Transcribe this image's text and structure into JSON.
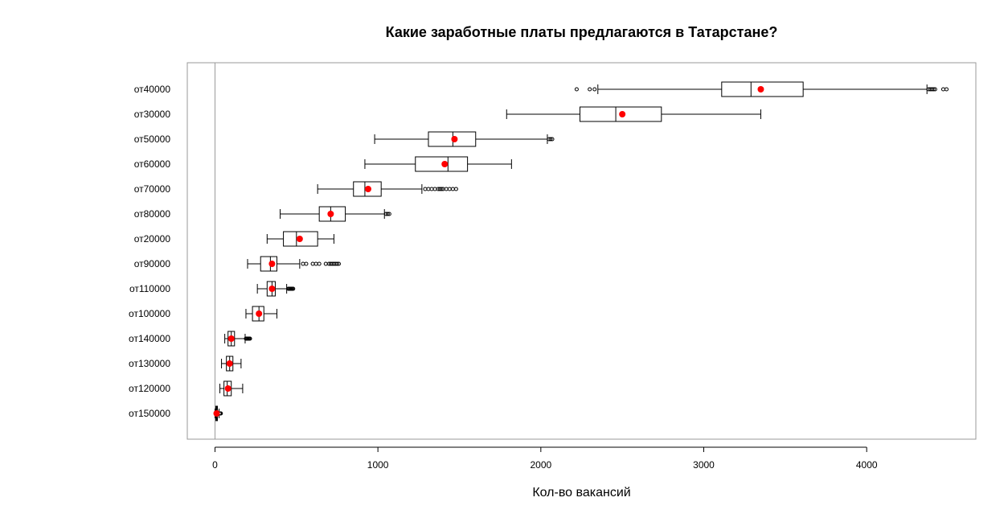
{
  "chart_data": {
    "type": "boxplot",
    "title": "Какие заработные платы предлагаются в Татарстане?",
    "xlabel": "Кол-во вакансий",
    "ylabel": "",
    "xlim": [
      -170,
      4670
    ],
    "x_ticks": [
      0,
      1000,
      2000,
      3000,
      4000
    ],
    "reference_line_x": 0,
    "mean_color": "#ff0000",
    "orientation": "horizontal",
    "categories": [
      "от40000",
      "от30000",
      "от50000",
      "от60000",
      "от70000",
      "от80000",
      "от20000",
      "от90000",
      "от110000",
      "от100000",
      "от140000",
      "от130000",
      "от120000",
      "от150000"
    ],
    "boxes": [
      {
        "label": "от40000",
        "whisker_low": 2350,
        "q1": 3110,
        "median": 3290,
        "q3": 3610,
        "whisker_high": 4370,
        "mean": 3350,
        "outliers": [
          2220,
          2300,
          2330,
          4380,
          4390,
          4400,
          4410,
          4420,
          4470,
          4490
        ]
      },
      {
        "label": "от30000",
        "whisker_low": 1790,
        "q1": 2240,
        "median": 2460,
        "q3": 2740,
        "whisker_high": 3350,
        "mean": 2500,
        "outliers": []
      },
      {
        "label": "от50000",
        "whisker_low": 980,
        "q1": 1310,
        "median": 1460,
        "q3": 1600,
        "whisker_high": 2040,
        "mean": 1470,
        "outliers": [
          2050,
          2060,
          2070
        ]
      },
      {
        "label": "от60000",
        "whisker_low": 920,
        "q1": 1230,
        "median": 1430,
        "q3": 1550,
        "whisker_high": 1820,
        "mean": 1410,
        "outliers": []
      },
      {
        "label": "от70000",
        "whisker_low": 630,
        "q1": 850,
        "median": 920,
        "q3": 1020,
        "whisker_high": 1270,
        "mean": 940,
        "outliers": [
          1290,
          1310,
          1330,
          1350,
          1370,
          1380,
          1390,
          1400,
          1420,
          1440,
          1460,
          1480
        ]
      },
      {
        "label": "от80000",
        "whisker_low": 400,
        "q1": 640,
        "median": 710,
        "q3": 800,
        "whisker_high": 1040,
        "mean": 710,
        "outliers": [
          1050,
          1060,
          1070
        ]
      },
      {
        "label": "от20000",
        "whisker_low": 320,
        "q1": 420,
        "median": 500,
        "q3": 630,
        "whisker_high": 730,
        "mean": 520,
        "outliers": []
      },
      {
        "label": "от90000",
        "whisker_low": 200,
        "q1": 280,
        "median": 340,
        "q3": 380,
        "whisker_high": 520,
        "mean": 350,
        "outliers": [
          540,
          560,
          600,
          620,
          640,
          680,
          700,
          710,
          720,
          730,
          740,
          750,
          760
        ]
      },
      {
        "label": "от110000",
        "whisker_low": 260,
        "q1": 320,
        "median": 350,
        "q3": 370,
        "whisker_high": 440,
        "mean": 350,
        "outliers": [
          450,
          455,
          460,
          465,
          470,
          475,
          480
        ]
      },
      {
        "label": "от100000",
        "whisker_low": 190,
        "q1": 230,
        "median": 270,
        "q3": 300,
        "whisker_high": 380,
        "mean": 270,
        "outliers": []
      },
      {
        "label": "от140000",
        "whisker_low": 60,
        "q1": 80,
        "median": 100,
        "q3": 120,
        "whisker_high": 185,
        "mean": 100,
        "outliers": [
          190,
          195,
          200,
          205,
          210,
          215
        ]
      },
      {
        "label": "от130000",
        "whisker_low": 40,
        "q1": 70,
        "median": 90,
        "q3": 110,
        "whisker_high": 160,
        "mean": 90,
        "outliers": []
      },
      {
        "label": "от120000",
        "whisker_low": 30,
        "q1": 55,
        "median": 75,
        "q3": 100,
        "whisker_high": 170,
        "mean": 80,
        "outliers": []
      },
      {
        "label": "от150000",
        "whisker_low": 0,
        "q1": 5,
        "median": 10,
        "q3": 15,
        "whisker_high": 25,
        "mean": 10,
        "outliers": [
          28,
          32,
          36
        ]
      }
    ]
  }
}
